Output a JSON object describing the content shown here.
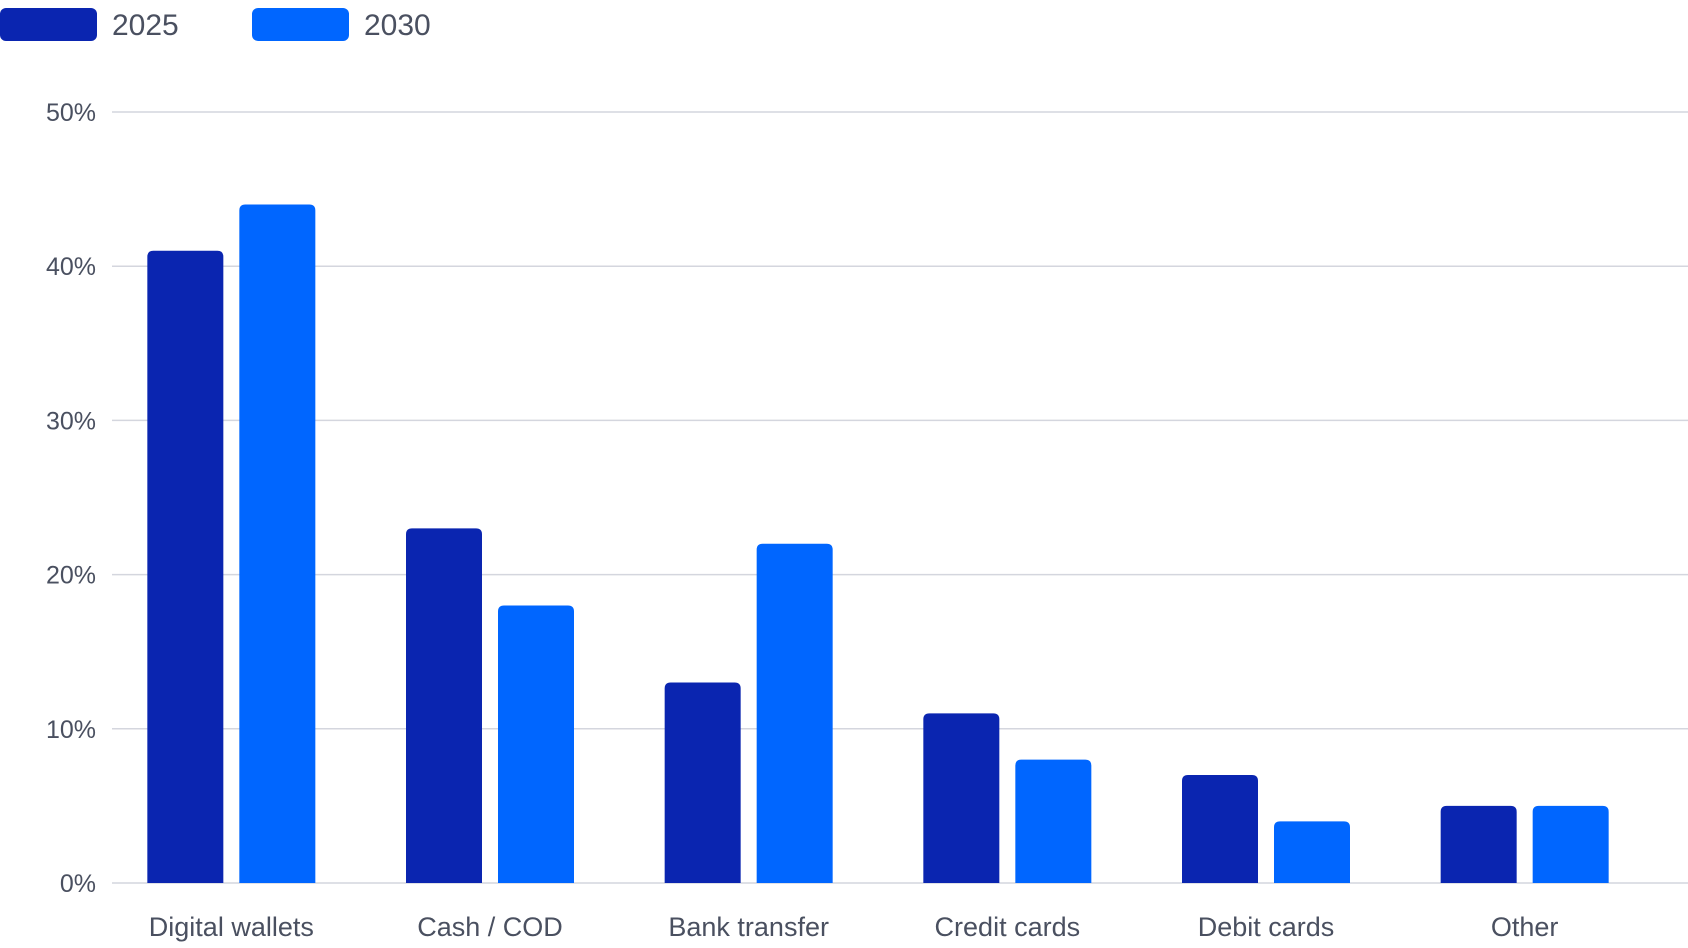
{
  "chart_data": {
    "type": "bar",
    "categories": [
      "Digital wallets",
      "Cash / COD",
      "Bank transfer",
      "Credit cards",
      "Debit cards",
      "Other"
    ],
    "series": [
      {
        "name": "2025",
        "values": [
          41,
          23,
          13,
          11,
          7,
          5
        ],
        "color": "#0a25b0"
      },
      {
        "name": "2030",
        "values": [
          44,
          18,
          22,
          8,
          4,
          5
        ],
        "color": "#0066ff"
      }
    ],
    "yticks": [
      "0%",
      "10%",
      "20%",
      "30%",
      "40%",
      "50%"
    ],
    "ytick_values": [
      0,
      10,
      20,
      30,
      40,
      50
    ],
    "ylim": [
      0,
      50
    ],
    "grid": true,
    "legend_position": "top-left",
    "colors": {
      "grid": "#d4d6de",
      "text": "#4a5060"
    }
  }
}
